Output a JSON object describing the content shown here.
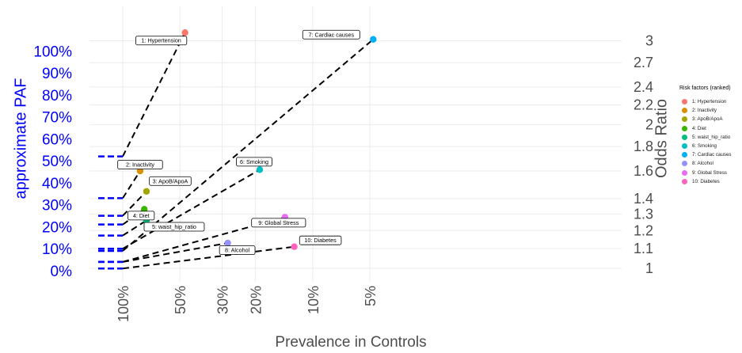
{
  "chart_data": {
    "type": "scatter",
    "xlabel": "Prevalence in Controls",
    "ylabel_left": "approximate PAF",
    "ylabel_right": "Odds Ratio",
    "x_ticks": [
      {
        "label": "100%",
        "value": 1.0
      },
      {
        "label": "50%",
        "value": 0.5
      },
      {
        "label": "30%",
        "value": 0.3
      },
      {
        "label": "20%",
        "value": 0.2
      },
      {
        "label": "10%",
        "value": 0.1
      },
      {
        "label": "5%",
        "value": 0.05
      }
    ],
    "paf_ticks": [
      "0%",
      "10%",
      "20%",
      "30%",
      "40%",
      "50%",
      "60%",
      "70%",
      "80%",
      "90%",
      "100%"
    ],
    "or_ticks": [
      "1",
      "1.1",
      "1.2",
      "1.3",
      "1.4",
      "1.6",
      "1.8",
      "2",
      "2.2",
      "2.4",
      "2.7",
      "3"
    ],
    "legend_title": "Risk factors (ranked)",
    "points": [
      {
        "label": "1: Hypertension",
        "prevalence": 0.47,
        "odds_ratio": 3.12,
        "paf": 0.52,
        "color": "#F8766D"
      },
      {
        "label": "2: Inactivity",
        "prevalence": 0.81,
        "odds_ratio": 1.6,
        "paf": 0.33,
        "color": "#D89000"
      },
      {
        "label": "3: ApoB/ApoA",
        "prevalence": 0.75,
        "odds_ratio": 1.45,
        "paf": 0.25,
        "color": "#A3A500"
      },
      {
        "label": "4: Diet",
        "prevalence": 0.77,
        "odds_ratio": 1.33,
        "paf": 0.21,
        "color": "#39B600"
      },
      {
        "label": "5: waist_hip_ratio",
        "prevalence": 0.75,
        "odds_ratio": 1.26,
        "paf": 0.16,
        "color": "#00BF7D"
      },
      {
        "label": "6: Smoking",
        "prevalence": 0.19,
        "odds_ratio": 1.61,
        "paf": 0.1,
        "color": "#00BFC4"
      },
      {
        "label": "7: Cardiac causes",
        "prevalence": 0.048,
        "odds_ratio": 3.02,
        "paf": 0.09,
        "color": "#00B0F6"
      },
      {
        "label": "8: Alcohol",
        "prevalence": 0.28,
        "odds_ratio": 1.13,
        "paf": 0.04,
        "color": "#9590FF"
      },
      {
        "label": "9: Global Stress",
        "prevalence": 0.14,
        "odds_ratio": 1.28,
        "paf": 0.04,
        "color": "#E76BF3"
      },
      {
        "label": "10: Diabetes",
        "prevalence": 0.125,
        "odds_ratio": 1.11,
        "paf": 0.01,
        "color": "#FF62BC"
      }
    ]
  }
}
